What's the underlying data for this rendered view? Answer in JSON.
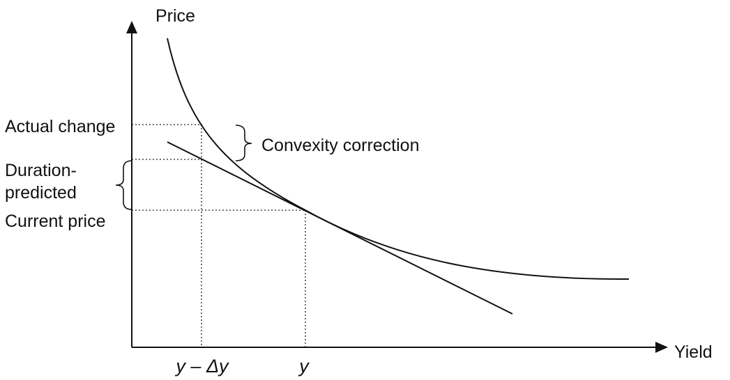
{
  "axes": {
    "y_label": "Price",
    "x_label": "Yield"
  },
  "price_levels": {
    "actual_change": "Actual change",
    "duration_predicted_line1": "Duration-",
    "duration_predicted_line2": "predicted",
    "current_price": "Current price"
  },
  "annotation": {
    "convexity_correction": "Convexity correction"
  },
  "x_ticks": {
    "shifted_yield": "y – Δy",
    "yield": "y"
  },
  "colors": {
    "ink": "#111111",
    "background": "#ffffff"
  }
}
